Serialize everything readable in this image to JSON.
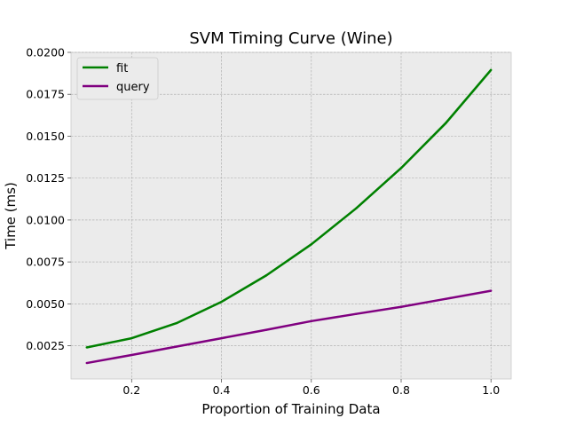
{
  "chart_data": {
    "type": "line",
    "title": "SVM Timing Curve (Wine)",
    "xlabel": "Proportion of Training Data",
    "ylabel": "Time (ms)",
    "xlim": [
      0.065,
      1.045
    ],
    "ylim": [
      0.00052,
      0.02
    ],
    "x": [
      0.1,
      0.2,
      0.3,
      0.4,
      0.5,
      0.6,
      0.7,
      0.8,
      0.9,
      1.0
    ],
    "xticks": [
      0.2,
      0.4,
      0.6,
      0.8,
      1.0
    ],
    "xtick_labels": [
      "0.2",
      "0.4",
      "0.6",
      "0.8",
      "1.0"
    ],
    "yticks": [
      0.0025,
      0.005,
      0.0075,
      0.01,
      0.0125,
      0.015,
      0.0175,
      0.02
    ],
    "ytick_labels": [
      "0.0025",
      "0.0050",
      "0.0075",
      "0.0100",
      "0.0125",
      "0.0150",
      "0.0175",
      "0.0200"
    ],
    "grid": true,
    "legend_position": "top-left",
    "background": "#ebebeb",
    "series": [
      {
        "name": "fit",
        "color": "#008000",
        "band_color": "#7fd07f",
        "values": [
          0.0024,
          0.00295,
          0.00385,
          0.00512,
          0.0067,
          0.00855,
          0.0107,
          0.0131,
          0.0158,
          0.01895
        ],
        "spread": [
          5e-05,
          5e-05,
          6e-05,
          7e-05,
          8e-05,
          8e-05,
          8e-05,
          9e-05,
          0.00012,
          0.00012
        ]
      },
      {
        "name": "query",
        "color": "#800080",
        "band_color": "#c080c0",
        "values": [
          0.00147,
          0.00195,
          0.00245,
          0.00295,
          0.00345,
          0.00397,
          0.0044,
          0.00482,
          0.0053,
          0.00578
        ],
        "spread": [
          2e-05,
          2e-05,
          2e-05,
          2e-05,
          2e-05,
          2e-05,
          2e-05,
          2e-05,
          2e-05,
          2e-05
        ]
      }
    ]
  }
}
